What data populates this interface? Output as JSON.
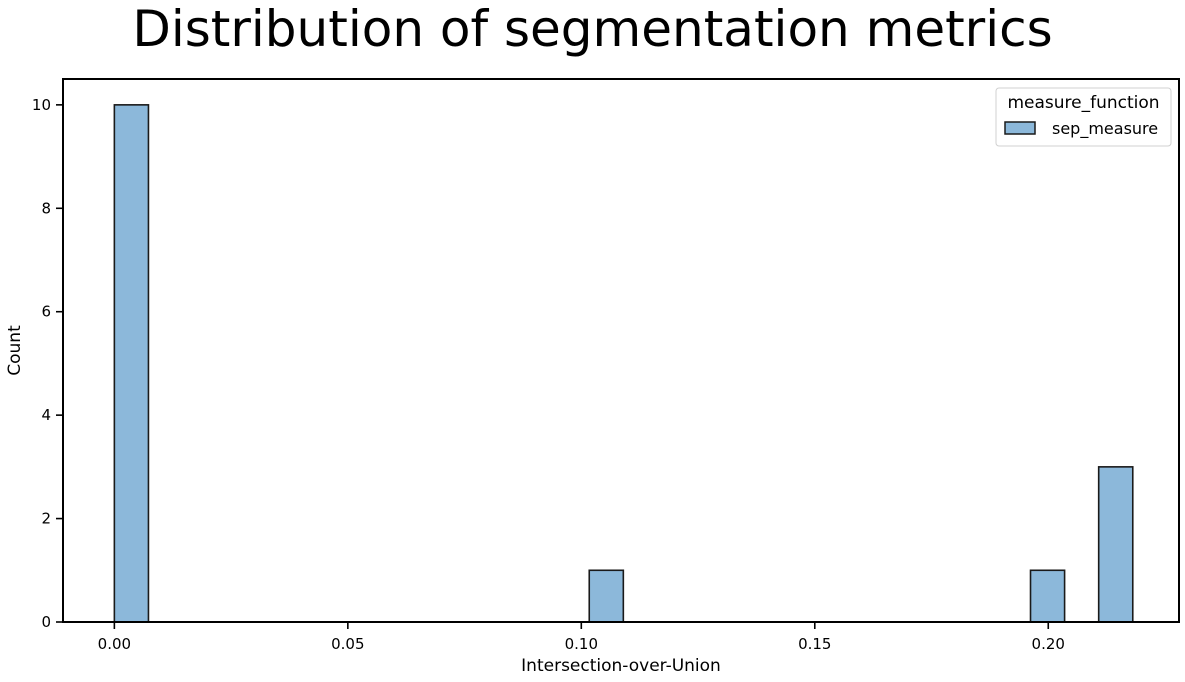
{
  "chart_data": {
    "type": "bar",
    "title": "Distribution of segmentation metrics",
    "xlabel": "Intersection-over-Union",
    "ylabel": "Count",
    "xlim": [
      -0.011,
      0.228
    ],
    "ylim": [
      0,
      10.5
    ],
    "xticks": [
      0.0,
      0.05,
      0.1,
      0.15,
      0.2
    ],
    "xtick_labels": [
      "0.00",
      "0.05",
      "0.10",
      "0.15",
      "0.20"
    ],
    "yticks": [
      0,
      2,
      4,
      6,
      8,
      10
    ],
    "ytick_labels": [
      "0",
      "2",
      "4",
      "6",
      "8",
      "10"
    ],
    "grid": false,
    "legend": {
      "title": "measure_function",
      "placement": "top-right",
      "entries": [
        "sep_measure"
      ]
    },
    "bar_color": "#8cb8da",
    "edge_color": "#1a1a1a",
    "series": [
      {
        "name": "sep_measure",
        "bins": [
          {
            "x0": 0.0,
            "x1": 0.0073,
            "count": 10
          },
          {
            "x0": 0.1017,
            "x1": 0.109,
            "count": 1
          },
          {
            "x0": 0.1962,
            "x1": 0.2035,
            "count": 1
          },
          {
            "x0": 0.2108,
            "x1": 0.2181,
            "count": 3
          }
        ]
      }
    ]
  }
}
